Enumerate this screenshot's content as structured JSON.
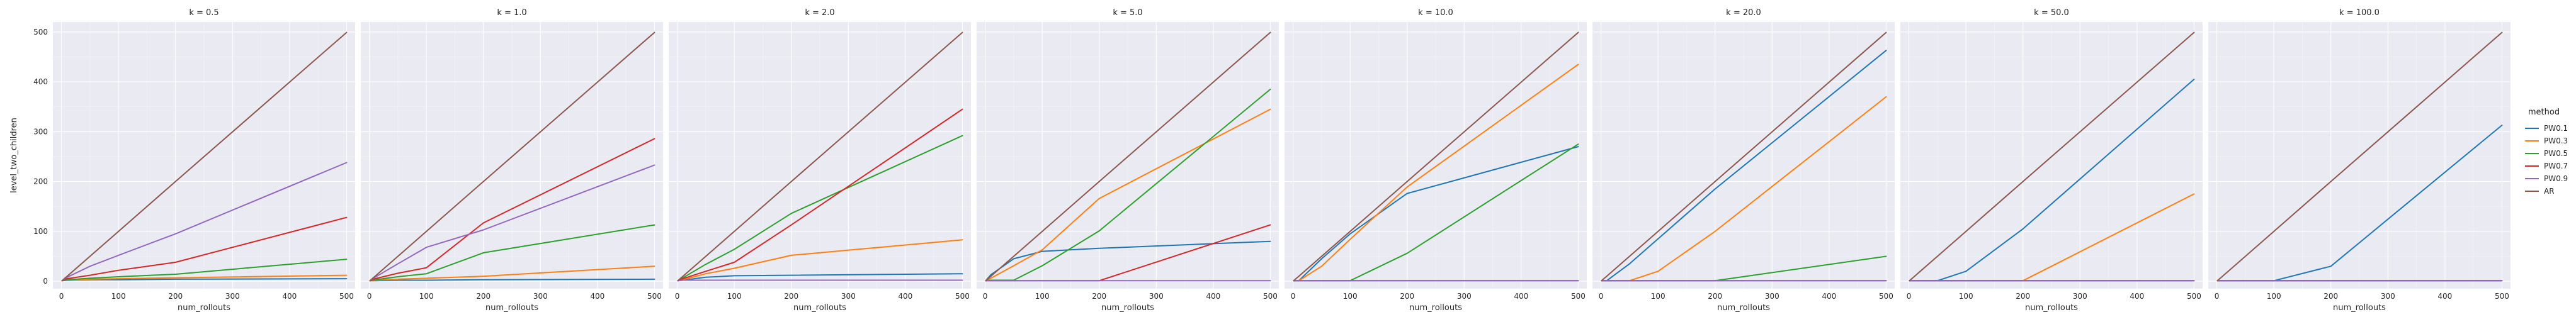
{
  "chart_data": {
    "type": "line",
    "layout": "facet-grid",
    "facet_variable": "k",
    "xlabel": "num_rollouts",
    "ylabel": "level_two_children",
    "x": [
      1,
      10,
      50,
      100,
      200,
      500
    ],
    "xticks": [
      0,
      100,
      200,
      300,
      400,
      500
    ],
    "yticks": [
      0,
      100,
      200,
      300,
      400,
      500
    ],
    "xlim": [
      -15,
      515
    ],
    "ylim": [
      -15,
      520
    ],
    "legend_title": "method",
    "legend_position": "right",
    "grid": true,
    "background": "#eaeaf2",
    "series_colors": {
      "PW0.1": "#1f77b4",
      "PW0.3": "#ff7f0e",
      "PW0.5": "#2ca02c",
      "PW0.7": "#d62728",
      "PW0.9": "#9467bd",
      "AR": "#8c564b"
    },
    "panels": [
      {
        "title": "k = 0.5",
        "series": [
          {
            "name": "PW0.1",
            "values": [
              1,
              2,
              3,
              3,
              4,
              5
            ]
          },
          {
            "name": "PW0.3",
            "values": [
              1,
              3,
              4,
              5,
              7,
              12
            ]
          },
          {
            "name": "PW0.5",
            "values": [
              1,
              3,
              6,
              9,
              14,
              44
            ]
          },
          {
            "name": "PW0.7",
            "values": [
              1,
              5,
              12,
              22,
              38,
              128
            ]
          },
          {
            "name": "PW0.9",
            "values": [
              1,
              8,
              30,
              52,
              95,
              238
            ]
          },
          {
            "name": "AR",
            "values": [
              1,
              10,
              50,
              100,
              200,
              499
            ]
          }
        ]
      },
      {
        "title": "k = 1.0",
        "series": [
          {
            "name": "PW0.1",
            "values": [
              1,
              1,
              2,
              2,
              3,
              4
            ]
          },
          {
            "name": "PW0.3",
            "values": [
              1,
              2,
              4,
              6,
              10,
              30
            ]
          },
          {
            "name": "PW0.5",
            "values": [
              1,
              3,
              9,
              15,
              57,
              113
            ]
          },
          {
            "name": "PW0.7",
            "values": [
              1,
              5,
              16,
              27,
              117,
              286
            ]
          },
          {
            "name": "PW0.9",
            "values": [
              1,
              8,
              35,
              68,
              103,
              233
            ]
          },
          {
            "name": "AR",
            "values": [
              1,
              10,
              50,
              100,
              200,
              499
            ]
          }
        ]
      },
      {
        "title": "k = 2.0",
        "series": [
          {
            "name": "PW0.1",
            "values": [
              1,
              2,
              8,
              11,
              12,
              15
            ]
          },
          {
            "name": "PW0.3",
            "values": [
              1,
              3,
              15,
              26,
              52,
              83
            ]
          },
          {
            "name": "PW0.5",
            "values": [
              1,
              7,
              34,
              64,
              136,
              292
            ]
          },
          {
            "name": "PW0.7",
            "values": [
              1,
              5,
              20,
              38,
              113,
              345
            ]
          },
          {
            "name": "PW0.9",
            "values": [
              1,
              2,
              2,
              2,
              2,
              2
            ]
          },
          {
            "name": "AR",
            "values": [
              1,
              10,
              50,
              100,
              200,
              499
            ]
          }
        ]
      },
      {
        "title": "k = 5.0",
        "series": [
          {
            "name": "PW0.1",
            "values": [
              1,
              13,
              45,
              60,
              66,
              80
            ]
          },
          {
            "name": "PW0.3",
            "values": [
              1,
              6,
              31,
              63,
              166,
              345
            ]
          },
          {
            "name": "PW0.5",
            "values": [
              1,
              2,
              2,
              31,
              101,
              385
            ]
          },
          {
            "name": "PW0.7",
            "values": [
              1,
              1,
              1,
              1,
              1,
              113
            ]
          },
          {
            "name": "PW0.9",
            "values": [
              1,
              1,
              1,
              1,
              1,
              1
            ]
          },
          {
            "name": "AR",
            "values": [
              1,
              10,
              50,
              100,
              200,
              499
            ]
          }
        ]
      },
      {
        "title": "k = 10.0",
        "series": [
          {
            "name": "PW0.1",
            "values": [
              1,
              1,
              45,
              95,
              176,
              270
            ]
          },
          {
            "name": "PW0.3",
            "values": [
              1,
              1,
              30,
              84,
              189,
              435
            ]
          },
          {
            "name": "PW0.5",
            "values": [
              1,
              1,
              1,
              1,
              56,
              275
            ]
          },
          {
            "name": "PW0.7",
            "values": [
              1,
              1,
              1,
              1,
              1,
              1
            ]
          },
          {
            "name": "PW0.9",
            "values": [
              1,
              1,
              1,
              1,
              1,
              1
            ]
          },
          {
            "name": "AR",
            "values": [
              1,
              10,
              50,
              100,
              200,
              499
            ]
          }
        ]
      },
      {
        "title": "k = 20.0",
        "series": [
          {
            "name": "PW0.1",
            "values": [
              1,
              1,
              35,
              85,
              185,
              463
            ]
          },
          {
            "name": "PW0.3",
            "values": [
              1,
              1,
              1,
              20,
              100,
              370
            ]
          },
          {
            "name": "PW0.5",
            "values": [
              1,
              1,
              1,
              1,
              1,
              50
            ]
          },
          {
            "name": "PW0.7",
            "values": [
              1,
              1,
              1,
              1,
              1,
              1
            ]
          },
          {
            "name": "PW0.9",
            "values": [
              1,
              1,
              1,
              1,
              1,
              1
            ]
          },
          {
            "name": "AR",
            "values": [
              1,
              10,
              50,
              100,
              200,
              499
            ]
          }
        ]
      },
      {
        "title": "k = 50.0",
        "series": [
          {
            "name": "PW0.1",
            "values": [
              1,
              1,
              1,
              20,
              105,
              405
            ]
          },
          {
            "name": "PW0.3",
            "values": [
              1,
              1,
              1,
              1,
              1,
              175
            ]
          },
          {
            "name": "PW0.5",
            "values": [
              1,
              1,
              1,
              1,
              1,
              1
            ]
          },
          {
            "name": "PW0.7",
            "values": [
              1,
              1,
              1,
              1,
              1,
              1
            ]
          },
          {
            "name": "PW0.9",
            "values": [
              1,
              1,
              1,
              1,
              1,
              1
            ]
          },
          {
            "name": "AR",
            "values": [
              1,
              10,
              50,
              100,
              200,
              499
            ]
          }
        ]
      },
      {
        "title": "k = 100.0",
        "series": [
          {
            "name": "PW0.1",
            "values": [
              1,
              1,
              1,
              1,
              30,
              313
            ]
          },
          {
            "name": "PW0.3",
            "values": [
              1,
              1,
              1,
              1,
              1,
              1
            ]
          },
          {
            "name": "PW0.5",
            "values": [
              1,
              1,
              1,
              1,
              1,
              1
            ]
          },
          {
            "name": "PW0.7",
            "values": [
              1,
              1,
              1,
              1,
              1,
              1
            ]
          },
          {
            "name": "PW0.9",
            "values": [
              1,
              1,
              1,
              1,
              1,
              1
            ]
          },
          {
            "name": "AR",
            "values": [
              1,
              10,
              50,
              100,
              200,
              499
            ]
          }
        ]
      }
    ]
  }
}
